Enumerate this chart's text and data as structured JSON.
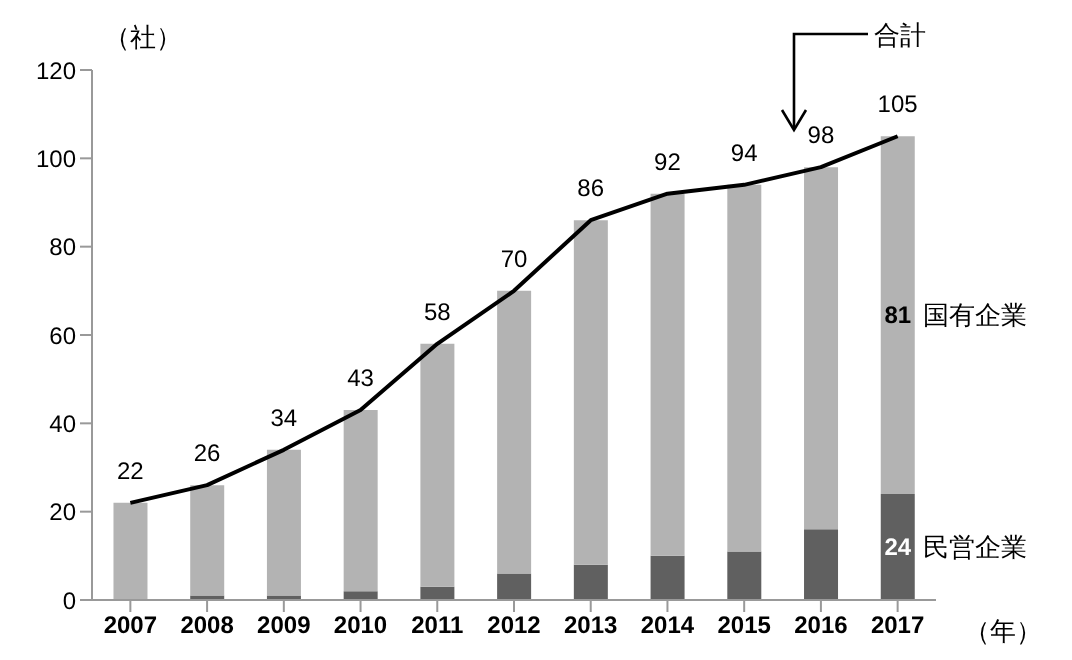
{
  "chart_data": {
    "type": "bar",
    "stacked": true,
    "ylabel": "（社）",
    "xlabel": "（年）",
    "categories": [
      "2007",
      "2008",
      "2009",
      "2010",
      "2011",
      "2012",
      "2013",
      "2014",
      "2015",
      "2016",
      "2017"
    ],
    "series": [
      {
        "name": "民営企業",
        "color": "#606060",
        "values": [
          0,
          1,
          1,
          2,
          3,
          6,
          8,
          10,
          11,
          16,
          24
        ],
        "value_labels": [
          null,
          null,
          null,
          null,
          null,
          null,
          null,
          null,
          null,
          null,
          "24"
        ]
      },
      {
        "name": "国有企業",
        "color": "#b3b3b3",
        "values": [
          22,
          25,
          33,
          41,
          55,
          64,
          78,
          82,
          83,
          82,
          81
        ],
        "value_labels": [
          null,
          null,
          null,
          null,
          null,
          null,
          null,
          null,
          null,
          null,
          "81"
        ]
      },
      {
        "name": "合計",
        "type": "line",
        "color": "#000000",
        "values": [
          22,
          26,
          34,
          43,
          58,
          70,
          86,
          92,
          94,
          98,
          105
        ],
        "value_labels": [
          "22",
          "26",
          "34",
          "43",
          "58",
          "70",
          "86",
          "92",
          "94",
          "98",
          "105"
        ]
      }
    ],
    "ylim": [
      0,
      120
    ],
    "yticks": [
      0,
      20,
      40,
      60,
      80,
      100,
      120
    ],
    "marker": "none"
  }
}
